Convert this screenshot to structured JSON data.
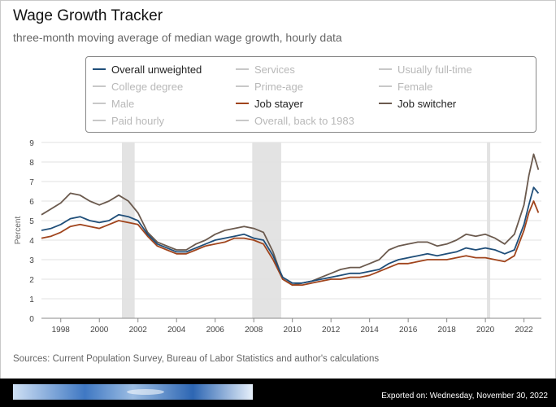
{
  "title": "Wage Growth Tracker",
  "subtitle": "three-month moving average of median wage growth, hourly data",
  "legend": [
    {
      "label": "Overall unweighted",
      "color": "#1f4e79",
      "active": true
    },
    {
      "label": "Services",
      "color": "#c8c8c8",
      "active": false
    },
    {
      "label": "Usually full-time",
      "color": "#c8c8c8",
      "active": false
    },
    {
      "label": "College degree",
      "color": "#c8c8c8",
      "active": false
    },
    {
      "label": "Prime-age",
      "color": "#c8c8c8",
      "active": false
    },
    {
      "label": "Female",
      "color": "#c8c8c8",
      "active": false
    },
    {
      "label": "Male",
      "color": "#c8c8c8",
      "active": false
    },
    {
      "label": "Job stayer",
      "color": "#a0441c",
      "active": true
    },
    {
      "label": "Job switcher",
      "color": "#6b5a4e",
      "active": true
    },
    {
      "label": "Paid hourly",
      "color": "#c8c8c8",
      "active": false
    },
    {
      "label": "Overall, back to 1983",
      "color": "#c8c8c8",
      "active": false
    }
  ],
  "sources": "Sources: Current Population Survey, Bureau of Labor Statistics and author's calculations",
  "exported": "Exported on: Wednesday, November 30, 2022",
  "chart_data": {
    "type": "line",
    "xlabel": "",
    "ylabel": "Percent",
    "ylim": [
      0,
      9
    ],
    "xlim": [
      1997,
      2022.9
    ],
    "yticks": [
      0,
      1,
      2,
      3,
      4,
      5,
      6,
      7,
      8,
      9
    ],
    "xticks": [
      "1998",
      "2000",
      "2002",
      "2004",
      "2006",
      "2008",
      "2010",
      "2012",
      "2014",
      "2016",
      "2018",
      "2020",
      "2022"
    ],
    "grid": true,
    "recessions": [
      [
        2001.17,
        2001.83
      ],
      [
        2007.92,
        2009.42
      ],
      [
        2020.08,
        2020.25
      ]
    ],
    "x": [
      1997.0,
      1997.5,
      1998.0,
      1998.5,
      1999.0,
      1999.5,
      2000.0,
      2000.5,
      2001.0,
      2001.5,
      2002.0,
      2002.5,
      2003.0,
      2003.5,
      2004.0,
      2004.5,
      2005.0,
      2005.5,
      2006.0,
      2006.5,
      2007.0,
      2007.5,
      2008.0,
      2008.5,
      2009.0,
      2009.5,
      2010.0,
      2010.5,
      2011.0,
      2011.5,
      2012.0,
      2012.5,
      2013.0,
      2013.5,
      2014.0,
      2014.5,
      2015.0,
      2015.5,
      2016.0,
      2016.5,
      2017.0,
      2017.5,
      2018.0,
      2018.5,
      2019.0,
      2019.5,
      2020.0,
      2020.5,
      2021.0,
      2021.5,
      2022.0,
      2022.25,
      2022.5,
      2022.75
    ],
    "series": [
      {
        "name": "Overall unweighted",
        "color": "#1f4e79",
        "values": [
          4.5,
          4.6,
          4.8,
          5.1,
          5.2,
          5.0,
          4.9,
          5.0,
          5.3,
          5.2,
          5.0,
          4.3,
          3.8,
          3.6,
          3.4,
          3.4,
          3.6,
          3.8,
          4.0,
          4.1,
          4.2,
          4.3,
          4.1,
          4.0,
          3.2,
          2.1,
          1.8,
          1.8,
          1.9,
          2.0,
          2.1,
          2.2,
          2.3,
          2.3,
          2.4,
          2.5,
          2.8,
          3.0,
          3.1,
          3.2,
          3.3,
          3.2,
          3.3,
          3.4,
          3.6,
          3.5,
          3.6,
          3.5,
          3.3,
          3.5,
          4.8,
          5.8,
          6.7,
          6.4
        ]
      },
      {
        "name": "Job stayer",
        "color": "#a0441c",
        "values": [
          4.1,
          4.2,
          4.4,
          4.7,
          4.8,
          4.7,
          4.6,
          4.8,
          5.0,
          4.9,
          4.8,
          4.2,
          3.7,
          3.5,
          3.3,
          3.3,
          3.5,
          3.7,
          3.8,
          3.9,
          4.1,
          4.1,
          4.0,
          3.8,
          3.0,
          2.0,
          1.7,
          1.7,
          1.8,
          1.9,
          2.0,
          2.0,
          2.1,
          2.1,
          2.2,
          2.4,
          2.6,
          2.8,
          2.8,
          2.9,
          3.0,
          3.0,
          3.0,
          3.1,
          3.2,
          3.1,
          3.1,
          3.0,
          2.9,
          3.2,
          4.5,
          5.4,
          6.0,
          5.4
        ]
      },
      {
        "name": "Job switcher",
        "color": "#6b5a4e",
        "values": [
          5.3,
          5.6,
          5.9,
          6.4,
          6.3,
          6.0,
          5.8,
          6.0,
          6.3,
          6.0,
          5.4,
          4.4,
          3.9,
          3.7,
          3.5,
          3.5,
          3.8,
          4.0,
          4.3,
          4.5,
          4.6,
          4.7,
          4.6,
          4.4,
          3.4,
          2.0,
          1.7,
          1.8,
          1.9,
          2.1,
          2.3,
          2.5,
          2.6,
          2.6,
          2.8,
          3.0,
          3.5,
          3.7,
          3.8,
          3.9,
          3.9,
          3.7,
          3.8,
          4.0,
          4.3,
          4.2,
          4.3,
          4.1,
          3.8,
          4.3,
          5.8,
          7.3,
          8.4,
          7.6
        ]
      }
    ]
  }
}
